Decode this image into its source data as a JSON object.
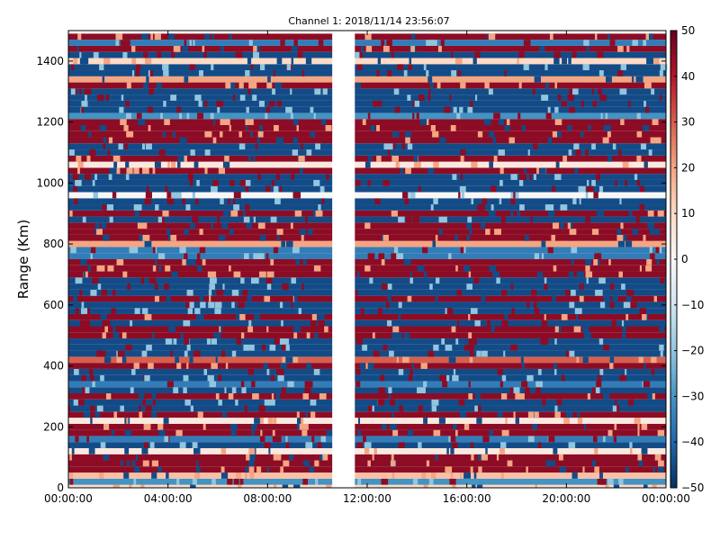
{
  "chart_data": {
    "type": "heatmap",
    "title": "Channel 1: 2018/11/14 23:56:07",
    "xlabel": "",
    "ylabel": "Range (Km)",
    "x_ticks": [
      "00:00:00",
      "04:00:00",
      "08:00:00",
      "12:00:00",
      "16:00:00",
      "20:00:00",
      "00:00:00"
    ],
    "y_ticks": [
      0,
      200,
      400,
      600,
      800,
      1000,
      1200,
      1400
    ],
    "ylim": [
      0,
      1500
    ],
    "xlim_hours": [
      0,
      24
    ],
    "colorbar": {
      "ticks": [
        50,
        40,
        30,
        20,
        10,
        0,
        -10,
        -20,
        -30,
        -40,
        -50
      ],
      "range": [
        -50,
        50
      ],
      "colormap": "RdBu_r"
    },
    "data_gap_hours": [
      10.6,
      11.5
    ],
    "range_rows": [
      {
        "range": 5,
        "value": 10
      },
      {
        "range": 20,
        "value": -30
      },
      {
        "range": 40,
        "value": 15
      },
      {
        "range": 60,
        "value": 45
      },
      {
        "range": 80,
        "value": 45
      },
      {
        "range": 100,
        "value": 45
      },
      {
        "range": 120,
        "value": 5
      },
      {
        "range": 140,
        "value": -45
      },
      {
        "range": 160,
        "value": -35
      },
      {
        "range": 180,
        "value": 45
      },
      {
        "range": 200,
        "value": 45
      },
      {
        "range": 220,
        "value": 5
      },
      {
        "range": 240,
        "value": 45
      },
      {
        "range": 260,
        "value": -45
      },
      {
        "range": 280,
        "value": -45
      },
      {
        "range": 300,
        "value": 45
      },
      {
        "range": 320,
        "value": -45
      },
      {
        "range": 340,
        "value": -35
      },
      {
        "range": 360,
        "value": -45
      },
      {
        "range": 380,
        "value": -45
      },
      {
        "range": 400,
        "value": 45
      },
      {
        "range": 420,
        "value": 30
      },
      {
        "range": 440,
        "value": -45
      },
      {
        "range": 460,
        "value": -45
      },
      {
        "range": 480,
        "value": -45
      },
      {
        "range": 500,
        "value": 45
      },
      {
        "range": 520,
        "value": 45
      },
      {
        "range": 540,
        "value": -45
      },
      {
        "range": 560,
        "value": 45
      },
      {
        "range": 580,
        "value": -45
      },
      {
        "range": 600,
        "value": -45
      },
      {
        "range": 620,
        "value": 45
      },
      {
        "range": 640,
        "value": -45
      },
      {
        "range": 660,
        "value": -45
      },
      {
        "range": 680,
        "value": -45
      },
      {
        "range": 700,
        "value": 45
      },
      {
        "range": 720,
        "value": 45
      },
      {
        "range": 740,
        "value": 45
      },
      {
        "range": 760,
        "value": -35
      },
      {
        "range": 780,
        "value": -35
      },
      {
        "range": 800,
        "value": 20
      },
      {
        "range": 820,
        "value": 45
      },
      {
        "range": 840,
        "value": 45
      },
      {
        "range": 860,
        "value": 45
      },
      {
        "range": 880,
        "value": -45
      },
      {
        "range": 900,
        "value": 45
      },
      {
        "range": 920,
        "value": -45
      },
      {
        "range": 940,
        "value": -45
      },
      {
        "range": 960,
        "value": 0
      },
      {
        "range": 980,
        "value": -45
      },
      {
        "range": 1000,
        "value": -45
      },
      {
        "range": 1020,
        "value": -45
      },
      {
        "range": 1040,
        "value": 45
      },
      {
        "range": 1060,
        "value": 5
      },
      {
        "range": 1080,
        "value": 45
      },
      {
        "range": 1100,
        "value": -45
      },
      {
        "range": 1120,
        "value": -45
      },
      {
        "range": 1140,
        "value": 45
      },
      {
        "range": 1160,
        "value": 45
      },
      {
        "range": 1180,
        "value": 45
      },
      {
        "range": 1200,
        "value": 45
      },
      {
        "range": 1220,
        "value": -30
      },
      {
        "range": 1240,
        "value": -45
      },
      {
        "range": 1260,
        "value": -45
      },
      {
        "range": 1280,
        "value": -45
      },
      {
        "range": 1300,
        "value": -45
      },
      {
        "range": 1320,
        "value": 45
      },
      {
        "range": 1340,
        "value": 20
      },
      {
        "range": 1360,
        "value": -45
      },
      {
        "range": 1380,
        "value": -45
      },
      {
        "range": 1400,
        "value": 10
      },
      {
        "range": 1420,
        "value": -45
      },
      {
        "range": 1440,
        "value": 45
      },
      {
        "range": 1460,
        "value": -35
      },
      {
        "range": 1480,
        "value": 45
      }
    ]
  }
}
